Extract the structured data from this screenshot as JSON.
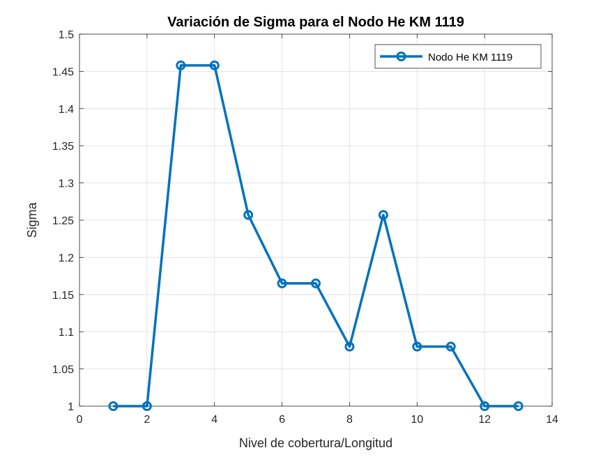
{
  "chart_data": {
    "type": "line",
    "title": "Variación de Sigma para el Nodo He KM 1119",
    "xlabel": "Nivel de cobertura/Longitud",
    "ylabel": "Sigma",
    "xlim": [
      0,
      14
    ],
    "ylim": [
      1,
      1.5
    ],
    "xticks": [
      0,
      2,
      4,
      6,
      8,
      10,
      12,
      14
    ],
    "yticks": [
      1,
      1.05,
      1.1,
      1.15,
      1.2,
      1.25,
      1.3,
      1.35,
      1.4,
      1.45,
      1.5
    ],
    "xtick_labels": [
      "0",
      "2",
      "4",
      "6",
      "8",
      "10",
      "12",
      "14"
    ],
    "ytick_labels": [
      "1",
      "1.05",
      "1.1",
      "1.15",
      "1.2",
      "1.25",
      "1.3",
      "1.35",
      "1.4",
      "1.45",
      "1.5"
    ],
    "grid": true,
    "legend_position": "top-right",
    "series": [
      {
        "name": "Nodo He KM 1119",
        "color": "#0072BD",
        "marker": "circle",
        "x": [
          1,
          2,
          3,
          4,
          5,
          6,
          7,
          8,
          9,
          10,
          11,
          12,
          13
        ],
        "y": [
          1.0,
          1.0,
          1.458,
          1.458,
          1.257,
          1.165,
          1.165,
          1.08,
          1.257,
          1.08,
          1.08,
          1.0,
          1.0
        ]
      }
    ]
  }
}
